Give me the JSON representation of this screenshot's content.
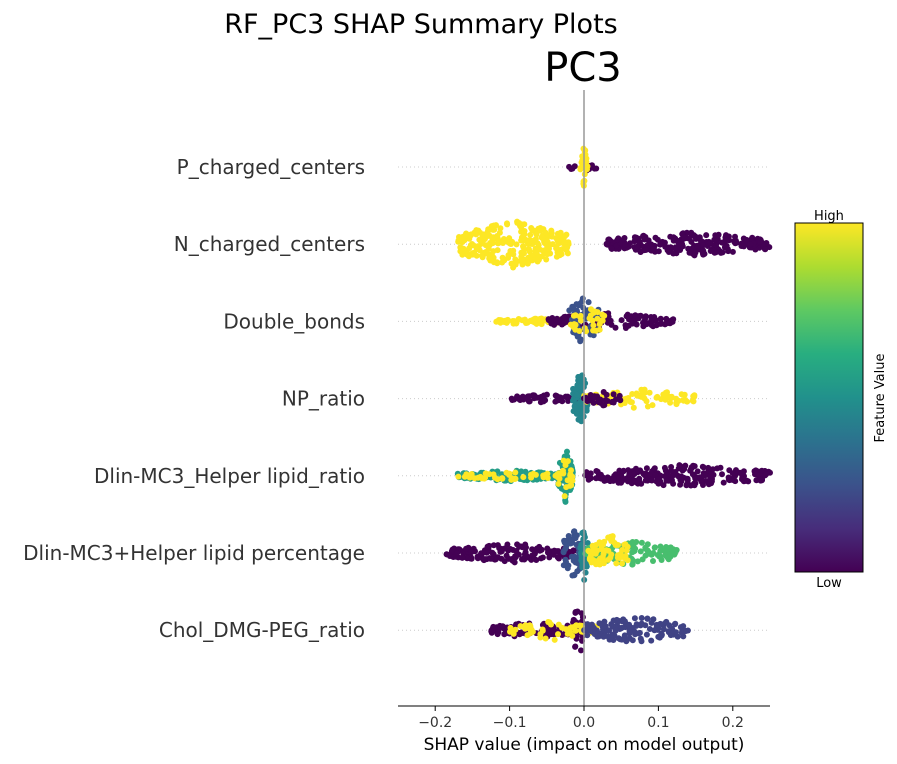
{
  "suptitle": "RF_PC3 SHAP Summary Plots",
  "chart_title": "PC3",
  "chart_data": {
    "type": "scatter",
    "subtype": "shap_beeswarm",
    "title": "PC3",
    "xlabel": "SHAP value (impact on model output)",
    "xlim": [
      -0.25,
      0.25
    ],
    "xticks": [
      -0.2,
      -0.1,
      0.0,
      0.1,
      0.2
    ],
    "xtick_labels": [
      "−0.2",
      "−0.1",
      "0.0",
      "0.1",
      "0.2"
    ],
    "grid": false,
    "colorbar": {
      "label": "Feature Value",
      "high": "High",
      "low": "Low",
      "colormap": "viridis",
      "placement": "right"
    },
    "features": [
      {
        "name": "P_charged_centers",
        "segments": [
          {
            "from": -0.025,
            "to": 0.02,
            "color_value": 0.0,
            "count": 14,
            "spread": 0.15
          },
          {
            "from": -0.005,
            "to": 0.005,
            "color_value": 1.0,
            "count": 30,
            "spread": 0.75
          }
        ]
      },
      {
        "name": "N_charged_centers",
        "segments": [
          {
            "from": -0.17,
            "to": -0.02,
            "color_value": 1.0,
            "count": 260,
            "spread": 0.85
          },
          {
            "from": 0.03,
            "to": 0.25,
            "color_value": 0.0,
            "count": 240,
            "spread": 0.45
          }
        ]
      },
      {
        "name": "Double_bonds",
        "segments": [
          {
            "from": -0.12,
            "to": -0.02,
            "color_value": 1.0,
            "count": 60,
            "spread": 0.12
          },
          {
            "from": -0.05,
            "to": 0.12,
            "color_value": 0.0,
            "count": 110,
            "spread": 0.3
          },
          {
            "from": -0.02,
            "to": 0.02,
            "color_value": 0.25,
            "count": 60,
            "spread": 1.0
          },
          {
            "from": -0.02,
            "to": 0.03,
            "color_value": 1.0,
            "count": 30,
            "spread": 0.5
          }
        ]
      },
      {
        "name": "NP_ratio",
        "segments": [
          {
            "from": -0.1,
            "to": -0.005,
            "color_value": 0.0,
            "count": 55,
            "spread": 0.15
          },
          {
            "from": -0.015,
            "to": 0.005,
            "color_value": 0.45,
            "count": 70,
            "spread": 1.0
          },
          {
            "from": 0.0,
            "to": 0.15,
            "color_value": 1.0,
            "count": 90,
            "spread": 0.35
          },
          {
            "from": 0.0,
            "to": 0.05,
            "color_value": 0.0,
            "count": 30,
            "spread": 0.25
          }
        ]
      },
      {
        "name": "Dlin-MC3_Helper lipid_ratio",
        "segments": [
          {
            "from": -0.17,
            "to": -0.03,
            "color_value": 0.55,
            "count": 110,
            "spread": 0.2
          },
          {
            "from": -0.17,
            "to": -0.03,
            "color_value": 1.0,
            "count": 45,
            "spread": 0.15
          },
          {
            "from": -0.035,
            "to": -0.015,
            "color_value": 0.55,
            "count": 60,
            "spread": 1.0
          },
          {
            "from": -0.035,
            "to": -0.015,
            "color_value": 1.0,
            "count": 20,
            "spread": 0.8
          },
          {
            "from": 0.0,
            "to": 0.25,
            "color_value": 0.0,
            "count": 230,
            "spread": 0.4
          }
        ]
      },
      {
        "name": "Dlin-MC3+Helper lipid percentage",
        "segments": [
          {
            "from": -0.185,
            "to": -0.01,
            "color_value": 0.0,
            "count": 150,
            "spread": 0.35
          },
          {
            "from": -0.03,
            "to": 0.0,
            "color_value": 0.25,
            "count": 50,
            "spread": 0.9
          },
          {
            "from": -0.005,
            "to": 0.005,
            "color_value": 0.45,
            "count": 30,
            "spread": 1.0
          },
          {
            "from": 0.0,
            "to": 0.125,
            "color_value": 0.7,
            "count": 110,
            "spread": 0.45
          },
          {
            "from": 0.005,
            "to": 0.06,
            "color_value": 1.0,
            "count": 70,
            "spread": 0.7
          }
        ]
      },
      {
        "name": "Chol_DMG-PEG_ratio",
        "segments": [
          {
            "from": -0.125,
            "to": -0.005,
            "color_value": 0.0,
            "count": 110,
            "spread": 0.3
          },
          {
            "from": -0.015,
            "to": 0.0,
            "color_value": 0.0,
            "count": 30,
            "spread": 1.0
          },
          {
            "from": -0.1,
            "to": 0.02,
            "color_value": 1.0,
            "count": 60,
            "spread": 0.35
          },
          {
            "from": 0.0,
            "to": 0.14,
            "color_value": 0.2,
            "count": 130,
            "spread": 0.5
          }
        ]
      }
    ]
  },
  "colors": {
    "zero_line": "#999999",
    "tick_text": "#333333",
    "grid_dots": "#cccccc"
  }
}
